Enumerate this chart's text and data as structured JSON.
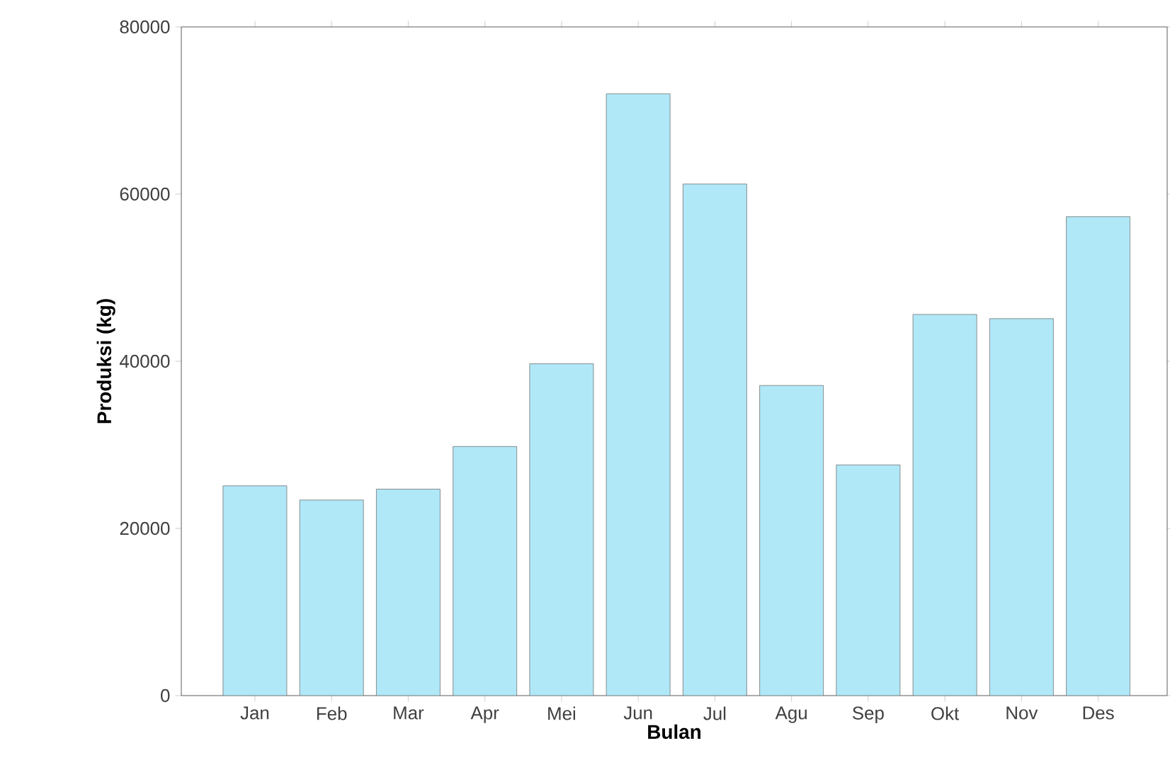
{
  "chart_data": {
    "type": "bar",
    "xlabel": "Bulan",
    "ylabel": "Produksi (kg)",
    "categories": [
      "Jan",
      "Feb",
      "Mar",
      "Apr",
      "Mei",
      "Jun",
      "Jul",
      "Agu",
      "Sep",
      "Okt",
      "Nov",
      "Des"
    ],
    "values": [
      25100,
      23400,
      24700,
      29800,
      39700,
      72000,
      61200,
      37100,
      27600,
      45600,
      45100,
      57300
    ],
    "color": "#b0e8f8",
    "ylim": [
      0,
      80000
    ],
    "yticks": [
      0,
      20000,
      40000,
      60000,
      80000
    ],
    "grid": false
  }
}
